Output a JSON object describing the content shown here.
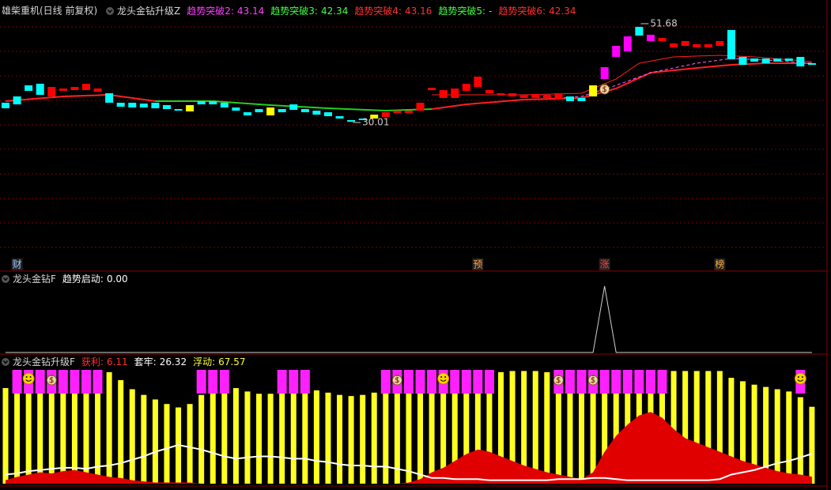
{
  "header": {
    "stock": "雄柴重机(日线 前复权)"
  },
  "chart_data": [
    {
      "type": "candlestick",
      "indicator": "龙头金钻升级Z",
      "readouts": [
        {
          "label": "趋势突破2:",
          "value": 43.14,
          "color": "#ff40ff"
        },
        {
          "label": "趋势突破3:",
          "value": 42.34,
          "color": "#40ff40"
        },
        {
          "label": "趋势突破4:",
          "value": 43.16,
          "color": "#ff3030"
        },
        {
          "label": "趋势突破5:",
          "value": "-",
          "color": "#40ff40"
        },
        {
          "label": "趋势突破6:",
          "value": 42.34,
          "color": "#ff3030"
        }
      ],
      "open": [
        34.35,
        35.73,
        38.16,
        38.51,
        35.73,
        36.95,
        37.12,
        37.12,
        36.77,
        36.43,
        34.35,
        34.35,
        34.17,
        34.35,
        33.82,
        32.96,
        33.82,
        34.69,
        34.69,
        34.35,
        33.3,
        32.26,
        32.96,
        33.3,
        32.96,
        33.99,
        32.96,
        32.61,
        32.26,
        31.4,
        30.53,
        30.88,
        31.74,
        31.22,
        32.09,
        32.09,
        32.61,
        37.12,
        35.39,
        35.39,
        36.95,
        37.81,
        36.43,
        36.08,
        35.73,
        35.39,
        35.39,
        35.39,
        35.21,
        35.73,
        35.39,
        35.73,
        39.55,
        44.4,
        45.62,
        50.99,
        47.87,
        47.87,
        46.48,
        46.83,
        46.48,
        46.48,
        46.83,
        50.3,
        44.4,
        44.05,
        44.05,
        44.05,
        44.05,
        44.4,
        43.02
      ],
      "close": [
        33.13,
        33.99,
        36.95,
        36.08,
        37.81,
        37.47,
        37.81,
        38.51,
        37.47,
        34.35,
        33.48,
        33.3,
        33.3,
        33.13,
        32.96,
        32.61,
        32.44,
        33.99,
        33.99,
        33.3,
        32.61,
        31.57,
        32.26,
        31.57,
        32.26,
        32.78,
        32.26,
        31.74,
        31.4,
        30.88,
        30.18,
        30.53,
        30.88,
        32.26,
        32.61,
        32.61,
        34.35,
        37.64,
        37.12,
        37.47,
        38.51,
        40.07,
        37.12,
        36.43,
        36.43,
        36.08,
        36.25,
        36.08,
        36.43,
        34.69,
        34.69,
        38.16,
        42.15,
        46.83,
        48.91,
        49.08,
        49.26,
        48.56,
        47.35,
        47.87,
        47.18,
        47.18,
        47.87,
        43.88,
        42.67,
        43.36,
        43.02,
        43.36,
        43.53,
        42.32,
        42.67
      ],
      "colors": [
        "cyan",
        "cyan",
        "cyan",
        "cyan",
        "red",
        "red",
        "red",
        "red",
        "red",
        "cyan",
        "cyan",
        "cyan",
        "cyan",
        "cyan",
        "cyan",
        "cyan",
        "yellow",
        "cyan",
        "cyan",
        "cyan",
        "cyan",
        "cyan",
        "cyan",
        "yellow",
        "cyan",
        "cyan",
        "cyan",
        "cyan",
        "cyan",
        "cyan",
        "cyan",
        "cyan",
        "yellow",
        "red",
        "red",
        "red",
        "red",
        "red",
        "red",
        "red",
        "red",
        "red",
        "red",
        "red",
        "red",
        "red",
        "red",
        "red",
        "red",
        "cyan",
        "cyan",
        "yellow",
        "magenta",
        "magenta",
        "magenta",
        "cyan",
        "magenta",
        "red",
        "red",
        "red",
        "red",
        "red",
        "red",
        "cyan",
        "cyan",
        "cyan",
        "cyan",
        "cyan",
        "cyan",
        "cyan",
        "cyan"
      ],
      "lines": [
        {
          "color": "#ff2020",
          "width": 2,
          "x": [
            0,
            5,
            9,
            13,
            18,
            23,
            28,
            33,
            37,
            40,
            45,
            50,
            53,
            56,
            60,
            63,
            66,
            70
          ],
          "values": [
            34.69,
            35.73,
            36.08,
            34.69,
            null,
            null,
            null,
            null,
            32.96,
            33.99,
            35.04,
            35.39,
            37.47,
            40.93,
            41.97,
            42.67,
            43.02,
            43.02
          ]
        },
        {
          "color": "#20d020",
          "width": 2,
          "x": [
            0,
            5,
            9,
            13,
            18,
            23,
            28,
            33,
            37,
            40,
            45,
            50,
            53,
            56,
            60,
            63,
            66,
            70
          ],
          "values": [
            null,
            null,
            null,
            34.69,
            34.69,
            33.82,
            33.13,
            32.61,
            32.96,
            null,
            null,
            null,
            null,
            null,
            null,
            null,
            null,
            null
          ]
        },
        {
          "color": "#ff2020",
          "width": 1,
          "x": [
            37,
            45,
            50,
            53,
            55,
            58,
            62,
            65,
            70
          ],
          "values": [
            36.08,
            36.08,
            36.43,
            39.55,
            43.02,
            44.4,
            44.75,
            44.4,
            43.36
          ]
        },
        {
          "color": "#ff66ff",
          "width": 1,
          "dashed": true,
          "x": [
            48,
            50,
            53,
            56,
            60,
            63,
            66,
            70
          ],
          "values": [
            35.39,
            35.73,
            38.16,
            40.93,
            43.02,
            44.05,
            43.71,
            43.02
          ]
        }
      ],
      "annotations": [
        {
          "x": 55,
          "value": 51.68
        },
        {
          "x": 30,
          "value": 30.01
        }
      ],
      "markers": [
        {
          "x": 1,
          "label": "财",
          "color": "#9ecbff"
        },
        {
          "x": 41,
          "label": "预",
          "color": "#ffa040"
        },
        {
          "x": 52,
          "label": "涨",
          "color": "#ff4040"
        },
        {
          "x": 62,
          "label": "榜",
          "color": "#ffb040"
        }
      ],
      "money_bag": [
        52
      ]
    },
    {
      "type": "line",
      "indicator": "龙头金钻F",
      "readouts": [
        {
          "label": "趋势启动:",
          "value": 0,
          "value_label": "0.00",
          "color": "#ffffff"
        }
      ],
      "color": "#d0d0d0",
      "values": [
        0,
        0,
        0,
        0,
        0,
        0,
        0,
        0,
        0,
        0,
        0,
        0,
        0,
        0,
        0,
        0,
        0,
        0,
        0,
        0,
        0,
        0,
        0,
        0,
        0,
        0,
        0,
        0,
        0,
        0,
        0,
        0,
        0,
        0,
        0,
        0,
        0,
        0,
        0,
        0,
        0,
        0,
        0,
        0,
        0,
        0,
        0,
        0,
        0,
        0,
        0,
        0,
        1,
        0,
        0,
        0,
        0,
        0,
        0,
        0,
        0,
        0,
        0,
        0,
        0,
        0,
        0,
        0,
        0,
        0,
        0
      ]
    },
    {
      "type": "composite",
      "indicator": "龙头金钻升级F",
      "readouts": [
        {
          "label": "获利:",
          "value": 6.11,
          "color": "#ff3030"
        },
        {
          "label": "套牢:",
          "value": 26.32,
          "color": "#ffffff"
        },
        {
          "label": "浮动:",
          "value": 67.57,
          "color": "#ffff30"
        }
      ],
      "series": [
        {
          "type": "bar",
          "color": "#ffff20",
          "values": [
            84,
            86,
            88,
            90,
            92,
            94,
            95,
            96,
            97,
            98,
            91,
            83,
            78,
            74,
            70,
            67,
            70,
            78,
            82,
            85,
            84,
            81,
            79,
            79,
            84,
            86,
            86,
            82,
            80,
            78,
            77,
            78,
            80,
            83,
            85,
            87,
            88,
            90,
            92,
            93,
            93,
            95,
            96,
            98,
            99,
            99,
            99,
            98,
            99,
            98,
            98,
            92,
            88,
            85,
            88,
            91,
            93,
            98,
            99,
            99,
            99,
            99,
            99,
            93,
            90,
            87,
            85,
            83,
            81,
            76,
            67.57
          ]
        },
        {
          "type": "area",
          "color": "#e00000",
          "values": [
            3,
            6,
            8,
            10,
            9,
            11,
            12,
            10,
            8,
            6,
            5,
            3,
            2,
            1,
            1,
            1,
            1,
            0,
            0,
            0,
            0,
            0,
            0,
            0,
            0,
            0,
            0,
            0,
            0,
            0,
            0,
            0,
            0,
            0,
            0,
            1,
            4,
            10,
            14,
            20,
            26,
            30,
            28,
            24,
            20,
            16,
            13,
            10,
            8,
            6,
            4,
            10,
            28,
            42,
            52,
            60,
            63,
            58,
            48,
            40,
            36,
            32,
            28,
            24,
            20,
            17,
            14,
            11,
            9,
            8,
            6.11
          ]
        },
        {
          "type": "line",
          "color": "#ffffff",
          "values": [
            8,
            9,
            11,
            12,
            13,
            14,
            14,
            13,
            15,
            16,
            18,
            21,
            24,
            28,
            31,
            34,
            32,
            30,
            27,
            24,
            22,
            23,
            24,
            24,
            23,
            22,
            22,
            20,
            19,
            17,
            16,
            16,
            15,
            15,
            13,
            11,
            8,
            5,
            5,
            4,
            4,
            4,
            3,
            3,
            3,
            3,
            3,
            3,
            4,
            4,
            4,
            5,
            5,
            4,
            3,
            3,
            3,
            3,
            3,
            3,
            3,
            3,
            4,
            8,
            10,
            12,
            15,
            18,
            20,
            23,
            26.32
          ]
        }
      ],
      "signals": [
        1,
        2,
        3,
        4,
        5,
        6,
        7,
        8,
        17,
        18,
        19,
        24,
        25,
        26,
        33,
        34,
        35,
        36,
        37,
        38,
        39,
        40,
        41,
        42,
        48,
        49,
        50,
        51,
        52,
        53,
        54,
        55,
        56,
        57,
        69
      ],
      "signal_color": "#ff20ff",
      "smiley": [
        2,
        38,
        69
      ],
      "money_bag": [
        4,
        34,
        48,
        51
      ]
    }
  ]
}
